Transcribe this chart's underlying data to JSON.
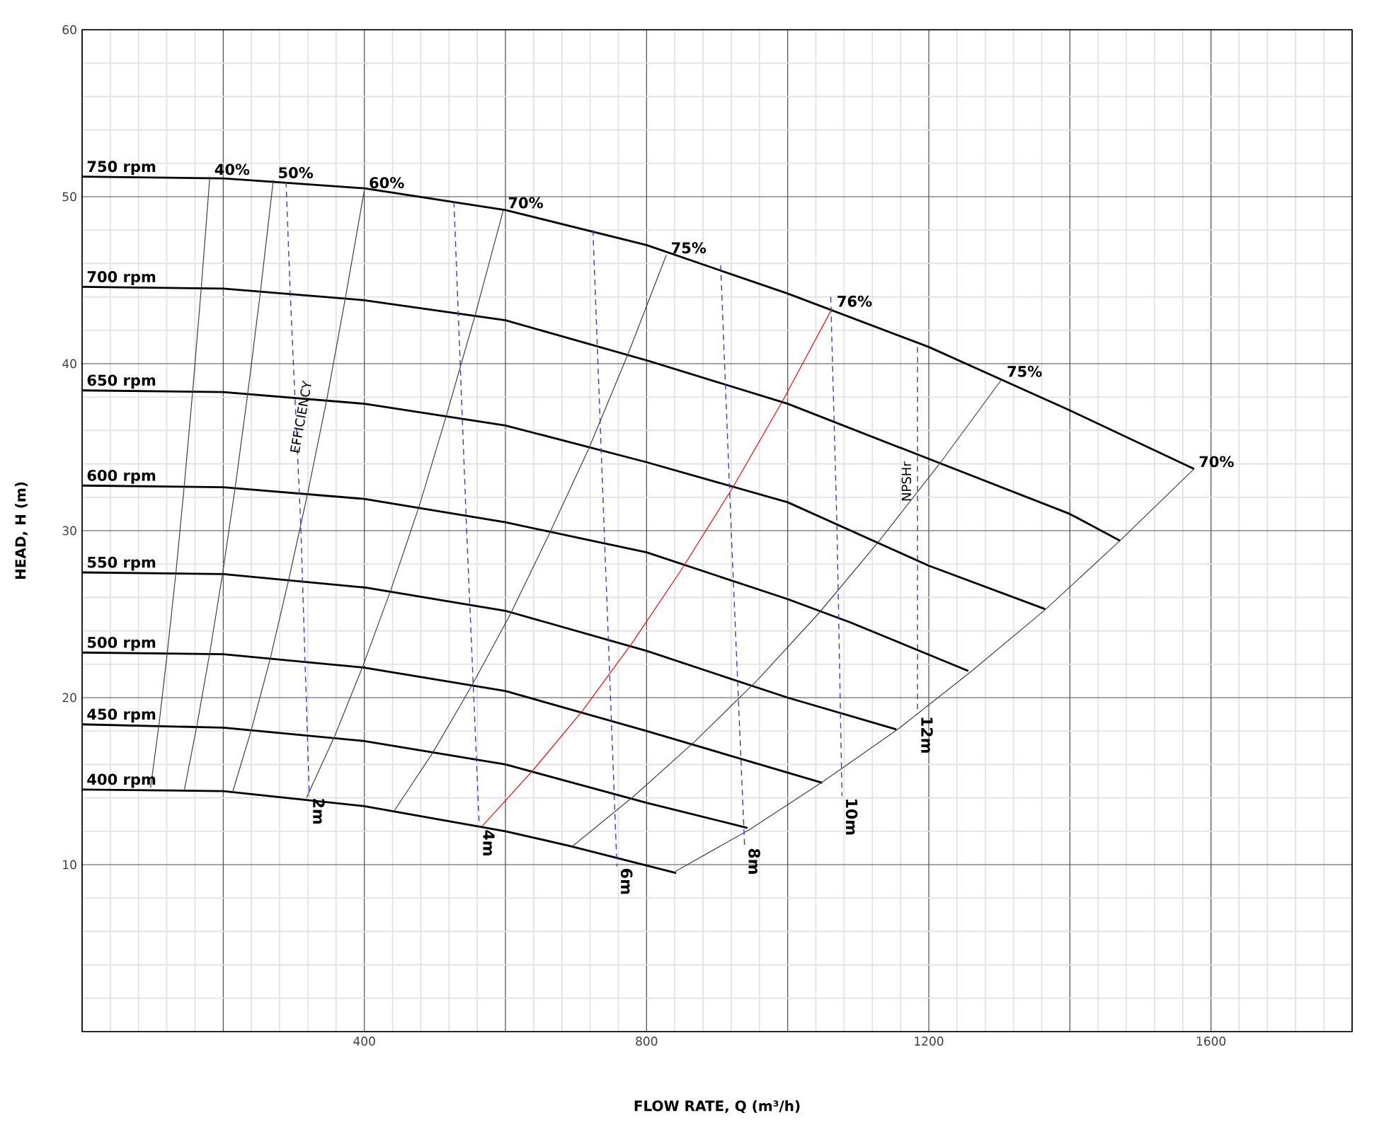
{
  "chart_data": {
    "type": "line",
    "xlabel": "FLOW RATE, Q (m³/h)",
    "ylabel": "HEAD, H (m)",
    "xlim": [
      0,
      1800
    ],
    "ylim": [
      0,
      60
    ],
    "xticks": [
      {
        "value": 0,
        "label": null
      },
      {
        "value": 200,
        "label": null
      },
      400,
      {
        "value": 600,
        "label": null
      },
      800,
      {
        "value": 1000,
        "label": null
      },
      1200,
      {
        "value": 1400,
        "label": null
      },
      1600,
      {
        "value": 1800,
        "label": null
      }
    ],
    "yticks": [
      {
        "value": 0,
        "label": null
      },
      10,
      20,
      30,
      40,
      50,
      60
    ],
    "grid": true,
    "series": [
      {
        "name": "750 rpm",
        "color": "#000000",
        "x": [
          0,
          200,
          400,
          600,
          800,
          1000,
          1200,
          1300,
          1400,
          1576
        ],
        "values": [
          51.2,
          51.1,
          50.5,
          49.2,
          47.1,
          44.2,
          41.0,
          39.1,
          37.2,
          33.7
        ]
      },
      {
        "name": "700 rpm",
        "color": "#000000",
        "x": [
          0,
          200,
          400,
          600,
          800,
          1000,
          1200,
          1400,
          1471
        ],
        "values": [
          44.6,
          44.5,
          43.8,
          42.6,
          40.2,
          37.6,
          34.3,
          31.0,
          29.4
        ]
      },
      {
        "name": "650 rpm",
        "color": "#000000",
        "x": [
          0,
          200,
          400,
          600,
          800,
          1000,
          1200,
          1365
        ],
        "values": [
          38.4,
          38.3,
          37.6,
          36.3,
          34.1,
          31.7,
          27.9,
          25.3
        ]
      },
      {
        "name": "600 rpm",
        "color": "#000000",
        "x": [
          0,
          200,
          400,
          600,
          800,
          1000,
          1089,
          1256
        ],
        "values": [
          32.7,
          32.6,
          31.9,
          30.5,
          28.7,
          25.9,
          24.5,
          21.6
        ]
      },
      {
        "name": "550 rpm",
        "color": "#000000",
        "x": [
          0,
          200,
          400,
          600,
          800,
          1000,
          1154
        ],
        "values": [
          27.5,
          27.4,
          26.6,
          25.2,
          22.8,
          20.0,
          18.1
        ]
      },
      {
        "name": "500 rpm",
        "color": "#000000",
        "x": [
          0,
          200,
          400,
          600,
          800,
          1049
        ],
        "values": [
          22.7,
          22.6,
          21.8,
          20.4,
          18.0,
          14.9
        ]
      },
      {
        "name": "450 rpm",
        "color": "#000000",
        "x": [
          0,
          200,
          400,
          600,
          800,
          943
        ],
        "values": [
          18.4,
          18.2,
          17.4,
          16.0,
          13.7,
          12.2
        ]
      },
      {
        "name": "400 rpm",
        "color": "#000000",
        "x": [
          0,
          200,
          400,
          600,
          693,
          842
        ],
        "values": [
          14.5,
          14.4,
          13.5,
          12.0,
          11.1,
          9.5
        ]
      },
      {
        "name": "40%",
        "color": "#404040",
        "x": [
          181,
          169,
          157,
          145,
          133,
          121,
          109,
          97
        ],
        "values": [
          51.2,
          44.6,
          38.5,
          32.8,
          27.5,
          22.8,
          18.4,
          14.6
        ]
      },
      {
        "name": "50%",
        "color": "#404040",
        "x": [
          271,
          253,
          235,
          217,
          199,
          181,
          163,
          145
        ],
        "values": [
          51.0,
          44.4,
          38.3,
          32.6,
          27.4,
          22.7,
          18.4,
          14.5
        ]
      },
      {
        "name": "60%",
        "color": "#404040",
        "x": [
          400,
          373,
          347,
          320,
          293,
          267,
          240,
          213
        ],
        "values": [
          50.4,
          43.9,
          37.9,
          32.3,
          27.1,
          22.4,
          18.1,
          14.3
        ]
      },
      {
        "name": "70%",
        "color": "#404040",
        "x": [
          597,
          557,
          517,
          478,
          438,
          398,
          358,
          318
        ],
        "values": [
          49.2,
          42.9,
          37.0,
          31.5,
          26.5,
          21.9,
          17.7,
          14.0
        ]
      },
      {
        "name": "75%",
        "color": "#404040",
        "x": [
          828,
          773,
          718,
          662,
          607,
          552,
          497,
          442
        ],
        "values": [
          46.5,
          40.5,
          34.9,
          29.8,
          25.0,
          20.7,
          16.7,
          13.2
        ]
      },
      {
        "name": "76%",
        "color": "#ff0000",
        "x": [
          1063,
          992,
          921,
          850,
          780,
          709,
          638,
          567
        ],
        "values": [
          43.3,
          37.7,
          32.5,
          27.7,
          23.3,
          19.2,
          15.6,
          12.3
        ]
      },
      {
        "name": "75%",
        "color": "#404040",
        "x": [
          1304,
          1217,
          1130,
          1043,
          956,
          869,
          782,
          695
        ],
        "values": [
          39.1,
          34.1,
          29.4,
          25.0,
          21.0,
          17.4,
          14.1,
          11.1
        ]
      },
      {
        "name": "70%",
        "color": "#404040",
        "x": [
          1576,
          1471,
          1366,
          1261,
          1156,
          1051,
          946,
          841
        ],
        "values": [
          33.7,
          29.4,
          25.3,
          21.6,
          18.1,
          15.0,
          12.1,
          9.6
        ]
      },
      {
        "name": "2m",
        "color": "#3a3acc",
        "line_style": "dashed",
        "x": [
          289,
          295,
          310,
          322
        ],
        "values": [
          50.9,
          44.2,
          30.2,
          14.1
        ]
      },
      {
        "name": "4m",
        "color": "#3a3acc",
        "line_style": "dashed",
        "x": [
          527,
          545,
          563
        ],
        "values": [
          49.7,
          30.0,
          12.2
        ]
      },
      {
        "name": "6m",
        "color": "#3a3acc",
        "line_style": "dashed",
        "x": [
          724,
          740,
          758
        ],
        "values": [
          48.0,
          30.0,
          9.9
        ]
      },
      {
        "name": "8m",
        "color": "#3a3acc",
        "line_style": "dashed",
        "x": [
          905,
          920,
          939
        ],
        "values": [
          45.9,
          30.0,
          11.1
        ]
      },
      {
        "name": "10m",
        "color": "#3a3acc",
        "line_style": "dashed",
        "x": [
          1061,
          1070,
          1077
        ],
        "values": [
          44.0,
          30.0,
          14.1
        ]
      },
      {
        "name": "12m",
        "color": "#3a3acc",
        "line_style": "dashed",
        "x": [
          1184,
          1184
        ],
        "values": [
          41.0,
          19.0
        ]
      }
    ],
    "annotations": [
      {
        "text": "EFFICIENCY",
        "x": 310,
        "y": 36.8
      },
      "NPSHr"
    ]
  }
}
